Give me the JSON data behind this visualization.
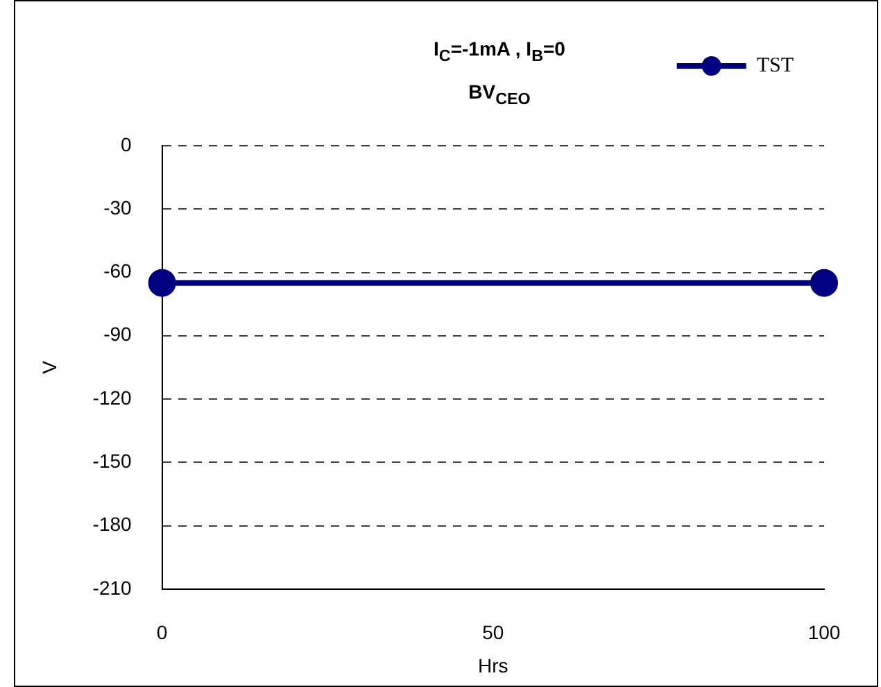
{
  "chart_data": {
    "type": "line",
    "title": "I$_{C}$=-1mA , I$_{B}$=0",
    "subtitle": "BV$_{CEO}$",
    "xlabel": "Hrs",
    "ylabel": "V",
    "x": [
      0,
      100
    ],
    "series": [
      {
        "name": "TST",
        "color": "#000080",
        "values": [
          -65,
          -65
        ]
      }
    ],
    "xlim": [
      0,
      100
    ],
    "xticks": [
      0,
      50,
      100
    ],
    "ylim": [
      -210,
      0
    ],
    "yticks": [
      0,
      -30,
      -60,
      -90,
      -120,
      -150,
      -180,
      -210
    ],
    "grid": "y",
    "legend": "top right",
    "marker": "circle",
    "line_style": "solid"
  }
}
